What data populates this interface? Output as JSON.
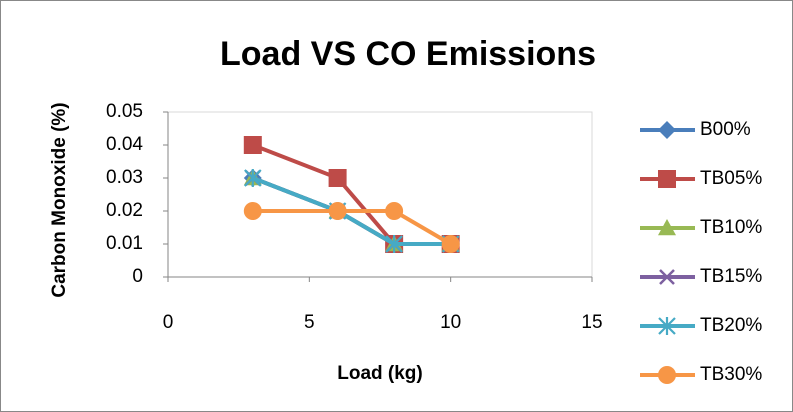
{
  "chart_data": {
    "type": "line",
    "title": "Load VS CO Emissions",
    "x_label": "Load (kg)",
    "y_label": "Carbon Monoxide (%)",
    "x": [
      3,
      6,
      8,
      10
    ],
    "series": [
      {
        "name": "B00%",
        "color": "#4a7ebb",
        "marker": "diamond",
        "values": [
          0.03,
          0.02,
          0.01,
          0.01
        ]
      },
      {
        "name": "TB05%",
        "color": "#be4b48",
        "marker": "square",
        "values": [
          0.04,
          0.03,
          0.01,
          0.01
        ]
      },
      {
        "name": "TB10%",
        "color": "#98b954",
        "marker": "triangle",
        "values": [
          0.03,
          0.02,
          0.01,
          0.01
        ]
      },
      {
        "name": "TB15%",
        "color": "#7d60a0",
        "marker": "x",
        "values": [
          0.03,
          0.02,
          0.01,
          0.01
        ]
      },
      {
        "name": "TB20%",
        "color": "#46aac5",
        "marker": "star",
        "values": [
          0.03,
          0.02,
          0.01,
          0.01
        ]
      },
      {
        "name": "TB30%",
        "color": "#f79646",
        "marker": "circle",
        "values": [
          0.02,
          0.02,
          0.02,
          0.01
        ]
      }
    ],
    "xlim": [
      0,
      15
    ],
    "xticks": [
      0,
      5,
      10,
      15
    ],
    "ylim": [
      0,
      0.05
    ],
    "yticks": [
      0,
      0.01,
      0.02,
      0.03,
      0.04,
      0.05
    ],
    "legend": "right"
  }
}
